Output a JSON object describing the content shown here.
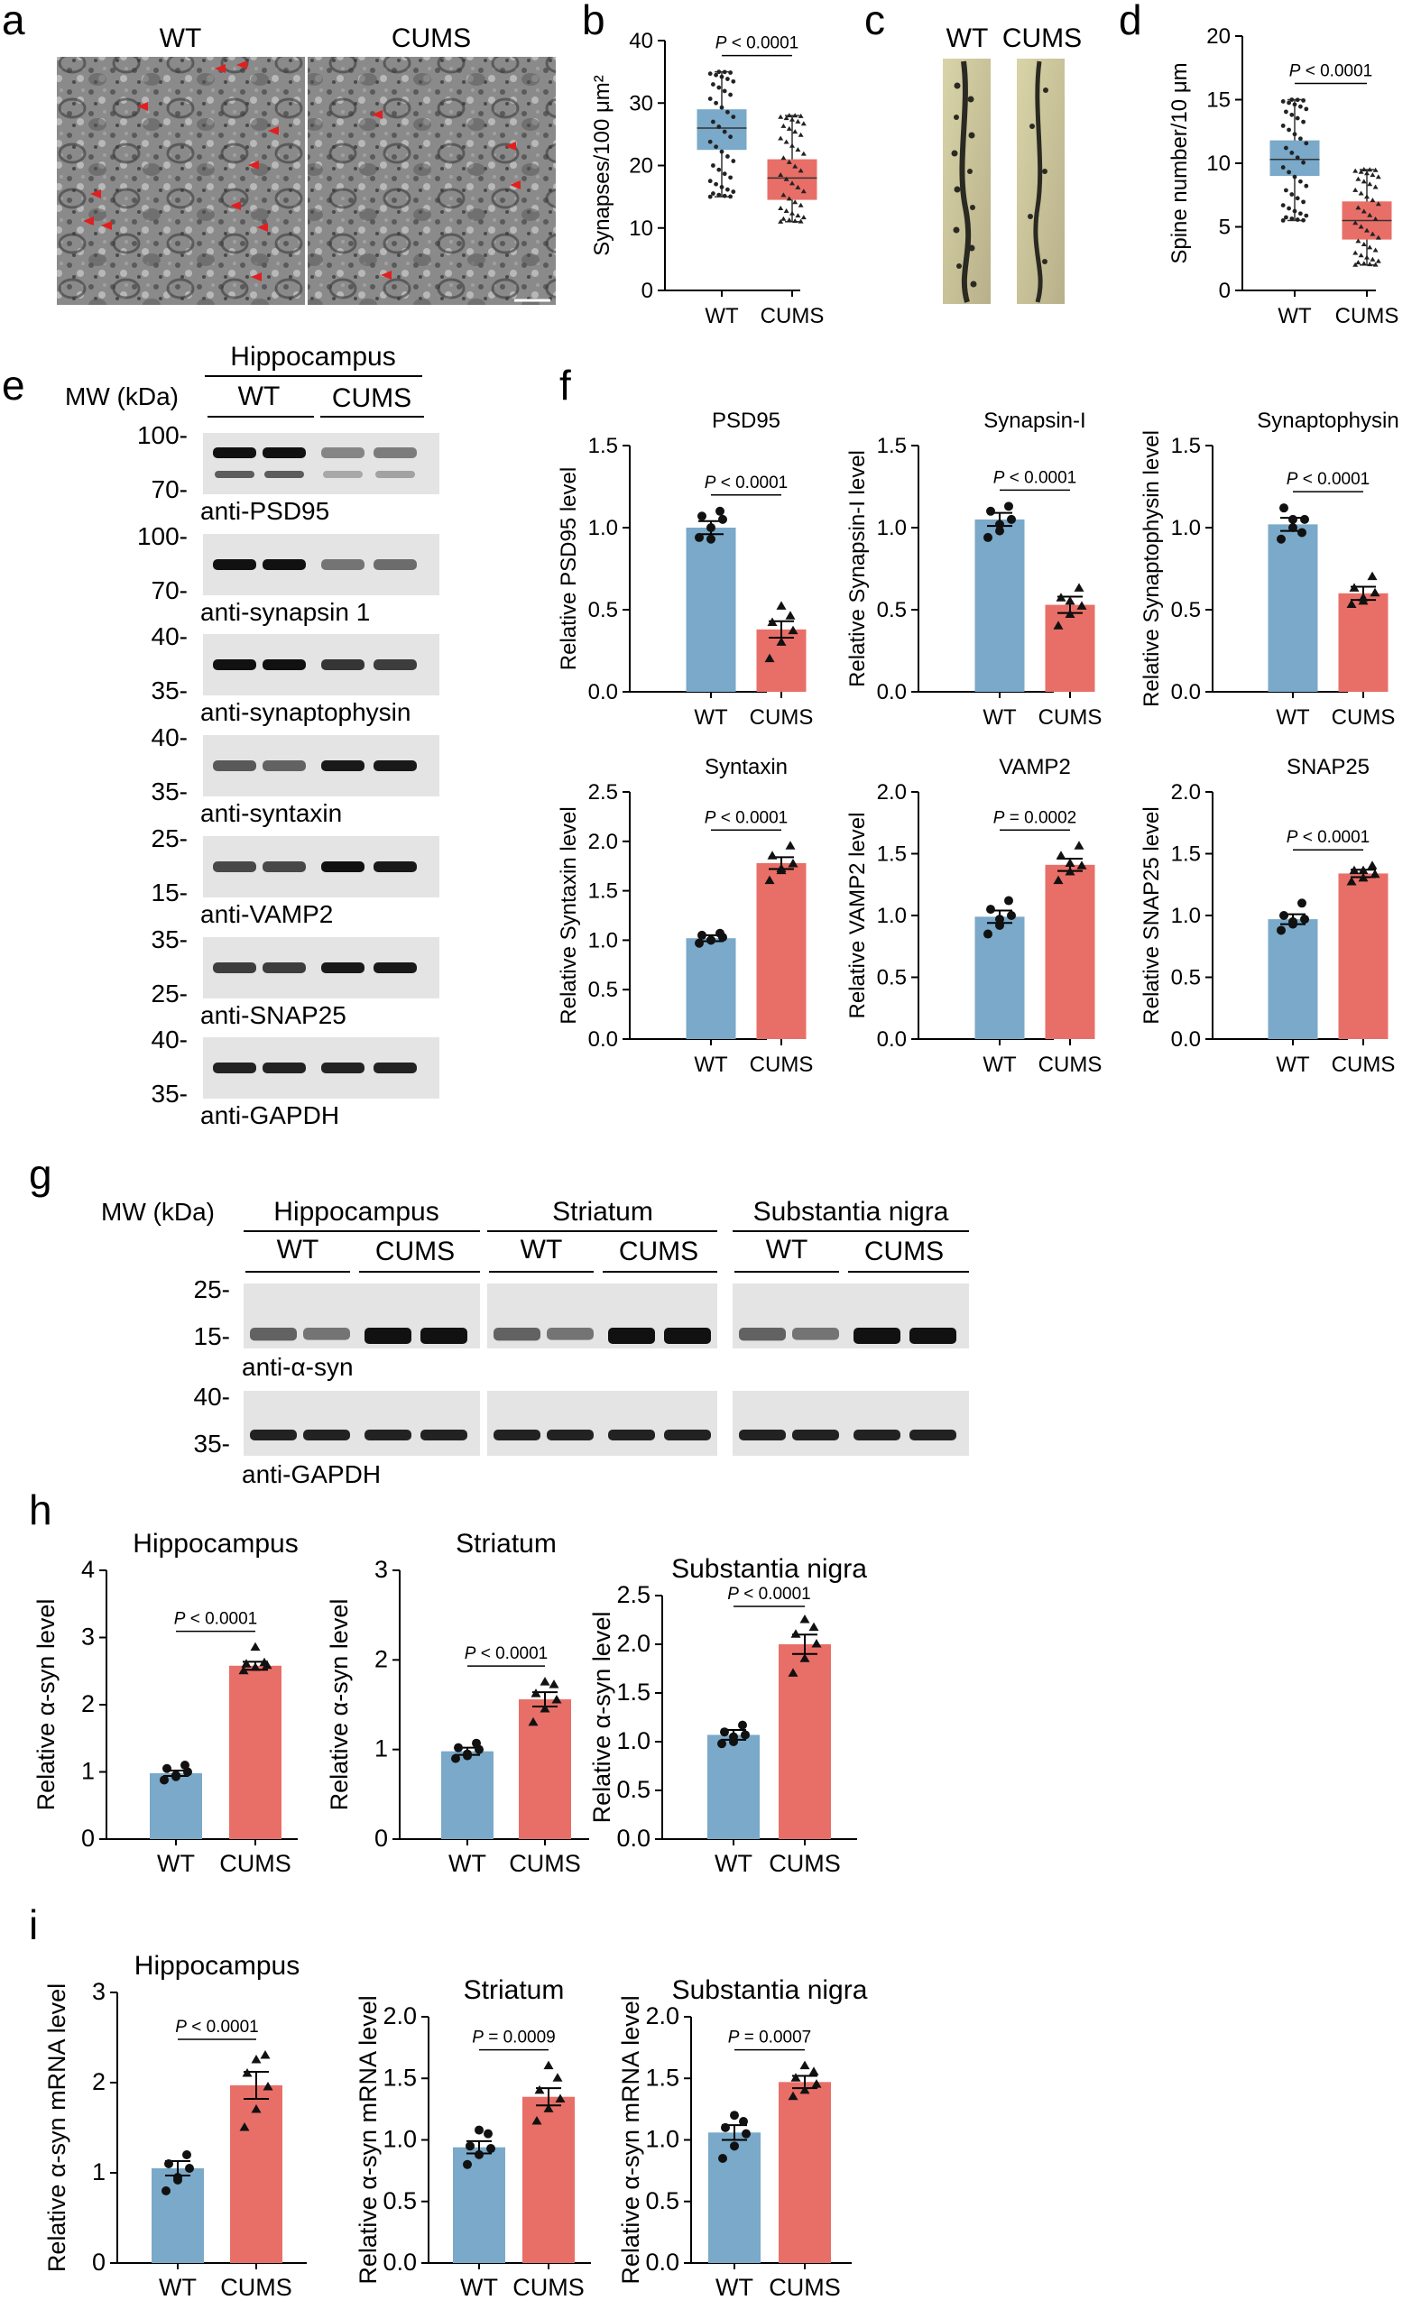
{
  "figure": {
    "panel_letters": [
      "a",
      "b",
      "c",
      "d",
      "e",
      "f",
      "g",
      "h",
      "i"
    ],
    "a": {
      "label_wt": "WT",
      "label_cums": "CUMS"
    },
    "c": {
      "label_wt": "WT",
      "label_cums": "CUMS"
    },
    "e": {
      "region": "Hippocampus",
      "mw_label": "MW (kDa)",
      "group_wt": "WT",
      "group_cums": "CUMS",
      "blots": [
        {
          "name": "anti-PSD95",
          "markers": [
            "100-",
            "70-"
          ],
          "intensities": [
            1.0,
            1.0,
            0.35,
            0.4
          ],
          "double": true
        },
        {
          "name": "anti-synapsin 1",
          "markers": [
            "100-",
            "70-"
          ],
          "intensities": [
            1.0,
            1.0,
            0.45,
            0.5
          ],
          "double": false
        },
        {
          "name": "anti-synaptophysin",
          "markers": [
            "40-",
            "35-"
          ],
          "intensities": [
            1.0,
            1.0,
            0.8,
            0.75
          ],
          "double": false
        },
        {
          "name": "anti-syntaxin",
          "markers": [
            "40-",
            "35-"
          ],
          "intensities": [
            0.6,
            0.55,
            0.95,
            0.95
          ],
          "double": false
        },
        {
          "name": "anti-VAMP2",
          "markers": [
            "25-",
            "15-"
          ],
          "intensities": [
            0.7,
            0.7,
            1.0,
            0.95
          ],
          "double": false
        },
        {
          "name": "anti-SNAP25",
          "markers": [
            "35-",
            "25-"
          ],
          "intensities": [
            0.75,
            0.75,
            0.95,
            0.95
          ],
          "double": false
        },
        {
          "name": "anti-GAPDH",
          "markers": [
            "40-",
            "35-"
          ],
          "intensities": [
            0.9,
            0.9,
            0.9,
            0.9
          ],
          "double": false
        }
      ]
    },
    "g": {
      "mw_label": "MW (kDa)",
      "regions": [
        "Hippocampus",
        "Striatum",
        "Substantia nigra"
      ],
      "group_wt": "WT",
      "group_cums": "CUMS",
      "blots": [
        {
          "name": "anti-α-syn",
          "markers": [
            "25-",
            "15-"
          ],
          "intensities": [
            0.55,
            0.45,
            1.0,
            1.0
          ]
        },
        {
          "name": "anti-GAPDH",
          "markers": [
            "40-",
            "35-"
          ],
          "intensities": [
            0.9,
            0.9,
            0.9,
            0.9
          ]
        }
      ]
    }
  },
  "chart_data": [
    {
      "panel": "b",
      "type": "box",
      "title": "",
      "ylabel": "Synapses/100 μm²",
      "ylim": [
        0,
        40
      ],
      "yticks": [
        0,
        10,
        20,
        30,
        40
      ],
      "categories": [
        "WT",
        "CUMS"
      ],
      "p_text": "P < 0.0001",
      "series": [
        {
          "name": "WT",
          "min": 15,
          "q1": 22.5,
          "median": 26,
          "q3": 29,
          "max": 35,
          "color": "#5b9bc4"
        },
        {
          "name": "CUMS",
          "min": 11,
          "q1": 14.5,
          "median": 18,
          "q3": 21,
          "max": 28,
          "color": "#e2665f"
        }
      ]
    },
    {
      "panel": "d",
      "type": "box",
      "title": "",
      "ylabel": "Spine number/10 μm",
      "ylim": [
        0,
        20
      ],
      "yticks": [
        0,
        5,
        10,
        15,
        20
      ],
      "categories": [
        "WT",
        "CUMS"
      ],
      "p_text": "P < 0.0001",
      "series": [
        {
          "name": "WT",
          "min": 5.5,
          "q1": 9,
          "median": 10.3,
          "q3": 11.8,
          "max": 15,
          "color": "#5b9bc4"
        },
        {
          "name": "CUMS",
          "min": 2,
          "q1": 4,
          "median": 5.5,
          "q3": 7,
          "max": 9.5,
          "color": "#e2665f"
        }
      ]
    },
    {
      "panel": "f1",
      "type": "bar",
      "title": "PSD95",
      "ylabel": "Relative PSD95 level",
      "ylim": [
        0,
        1.5
      ],
      "yticks": [
        "0.0",
        "0.5",
        "1.0",
        "1.5"
      ],
      "categories": [
        "WT",
        "CUMS"
      ],
      "values": [
        1.0,
        0.38
      ],
      "errors": [
        0.04,
        0.05
      ],
      "p_text": "P < 0.0001",
      "points": [
        [
          0.94,
          1.0,
          1.05,
          1.07,
          1.1,
          0.93
        ],
        [
          0.2,
          0.3,
          0.37,
          0.42,
          0.46,
          0.52
        ]
      ]
    },
    {
      "panel": "f2",
      "type": "bar",
      "title": "Synapsin-I",
      "ylabel": "Relative Synapsin-I level",
      "ylim": [
        0,
        1.5
      ],
      "yticks": [
        "0.0",
        "0.5",
        "1.0",
        "1.5"
      ],
      "categories": [
        "WT",
        "CUMS"
      ],
      "values": [
        1.05,
        0.53
      ],
      "errors": [
        0.04,
        0.05
      ],
      "p_text": "P < 0.0001",
      "points": [
        [
          0.94,
          1.02,
          1.05,
          1.1,
          1.13,
          0.98
        ],
        [
          0.4,
          0.47,
          0.52,
          0.57,
          0.63,
          0.55
        ]
      ]
    },
    {
      "panel": "f3",
      "type": "bar",
      "title": "Synaptophysin",
      "ylabel": "Relative Synaptophysin level",
      "ylim": [
        0,
        1.5
      ],
      "yticks": [
        "0.0",
        "0.5",
        "1.0",
        "1.5"
      ],
      "categories": [
        "WT",
        "CUMS"
      ],
      "values": [
        1.02,
        0.6
      ],
      "errors": [
        0.04,
        0.04
      ],
      "p_text": "P < 0.0001",
      "points": [
        [
          0.93,
          1.0,
          1.05,
          1.12,
          0.97,
          1.05
        ],
        [
          0.53,
          0.57,
          0.6,
          0.63,
          0.7,
          0.55
        ]
      ]
    },
    {
      "panel": "f4",
      "type": "bar",
      "title": "Syntaxin",
      "ylabel": "Relative Syntaxin level",
      "ylim": [
        0,
        2.5
      ],
      "yticks": [
        "0.0",
        "0.5",
        "1.0",
        "1.5",
        "2.0",
        "2.5"
      ],
      "categories": [
        "WT",
        "CUMS"
      ],
      "values": [
        1.02,
        1.78
      ],
      "errors": [
        0.03,
        0.06
      ],
      "p_text": "P < 0.0001",
      "points": [
        [
          0.97,
          1.0,
          1.03,
          1.05,
          1.07,
          1.0
        ],
        [
          1.6,
          1.7,
          1.77,
          1.85,
          1.95,
          1.72
        ]
      ]
    },
    {
      "panel": "f5",
      "type": "bar",
      "title": "VAMP2",
      "ylabel": "Relative VAMP2 level",
      "ylim": [
        0,
        2.0
      ],
      "yticks": [
        "0.0",
        "0.5",
        "1.0",
        "1.5",
        "2.0"
      ],
      "categories": [
        "WT",
        "CUMS"
      ],
      "values": [
        0.99,
        1.41
      ],
      "errors": [
        0.05,
        0.05
      ],
      "p_text": "P = 0.0002",
      "points": [
        [
          0.85,
          0.92,
          1.0,
          1.05,
          1.12,
          0.97
        ],
        [
          1.28,
          1.35,
          1.4,
          1.48,
          1.56,
          1.42
        ]
      ]
    },
    {
      "panel": "f6",
      "type": "bar",
      "title": "SNAP25",
      "ylabel": "Relative SNAP25 level",
      "ylim": [
        0,
        2.0
      ],
      "yticks": [
        "0.0",
        "0.5",
        "1.0",
        "1.5",
        "2.0"
      ],
      "categories": [
        "WT",
        "CUMS"
      ],
      "values": [
        0.97,
        1.34
      ],
      "errors": [
        0.04,
        0.03
      ],
      "p_text": "P < 0.0001",
      "points": [
        [
          0.88,
          0.93,
          0.97,
          1.0,
          1.1,
          0.95
        ],
        [
          1.27,
          1.3,
          1.33,
          1.36,
          1.4,
          1.36
        ]
      ]
    },
    {
      "panel": "h1",
      "type": "bar",
      "title": "Hippocampus",
      "ylabel": "Relative α-syn level",
      "ylim": [
        0,
        4
      ],
      "yticks": [
        "0",
        "1",
        "2",
        "3",
        "4"
      ],
      "categories": [
        "WT",
        "CUMS"
      ],
      "values": [
        0.98,
        2.58
      ],
      "errors": [
        0.04,
        0.06
      ],
      "p_text": "P < 0.0001",
      "points": [
        [
          0.88,
          0.95,
          1.0,
          1.05,
          1.1,
          0.93
        ],
        [
          2.5,
          2.55,
          2.58,
          2.6,
          2.62,
          2.85
        ]
      ]
    },
    {
      "panel": "h2",
      "type": "bar",
      "title": "Striatum",
      "ylabel": "Relative α-syn level",
      "ylim": [
        0,
        3
      ],
      "yticks": [
        "0",
        "1",
        "2",
        "3"
      ],
      "categories": [
        "WT",
        "CUMS"
      ],
      "values": [
        0.98,
        1.56
      ],
      "errors": [
        0.04,
        0.08
      ],
      "p_text": "P < 0.0001",
      "points": [
        [
          0.9,
          0.95,
          1.0,
          1.02,
          1.07,
          0.93
        ],
        [
          1.3,
          1.45,
          1.55,
          1.62,
          1.72,
          1.75
        ]
      ]
    },
    {
      "panel": "h3",
      "type": "bar",
      "title": "Substantia nigra",
      "ylabel": "Relative α-syn level",
      "ylim": [
        0,
        2.5
      ],
      "yticks": [
        "0.0",
        "0.5",
        "1.0",
        "1.5",
        "2.0",
        "2.5"
      ],
      "categories": [
        "WT",
        "CUMS"
      ],
      "values": [
        1.07,
        2.0
      ],
      "errors": [
        0.05,
        0.1
      ],
      "p_text": "P < 0.0001",
      "points": [
        [
          0.98,
          1.0,
          1.07,
          1.1,
          1.17,
          1.05
        ],
        [
          1.7,
          1.85,
          2.0,
          2.1,
          2.17,
          2.25
        ]
      ]
    },
    {
      "panel": "i1",
      "type": "bar",
      "title": "Hippocampus",
      "ylabel": "Relative α-syn mRNA level",
      "ylim": [
        0,
        3
      ],
      "yticks": [
        "0",
        "1",
        "2",
        "3"
      ],
      "categories": [
        "WT",
        "CUMS"
      ],
      "values": [
        1.05,
        1.97
      ],
      "errors": [
        0.08,
        0.15
      ],
      "p_text": "P < 0.0001",
      "points": [
        [
          0.8,
          0.95,
          1.05,
          1.1,
          1.2,
          0.92
        ],
        [
          1.5,
          1.7,
          1.95,
          2.1,
          2.3,
          2.25
        ]
      ]
    },
    {
      "panel": "i2",
      "type": "bar",
      "title": "Striatum",
      "ylabel": "Relative α-syn mRNA level",
      "ylim": [
        0,
        2.0
      ],
      "yticks": [
        "0.0",
        "0.5",
        "1.0",
        "1.5",
        "2.0"
      ],
      "categories": [
        "WT",
        "CUMS"
      ],
      "values": [
        0.94,
        1.35
      ],
      "errors": [
        0.05,
        0.07
      ],
      "p_text": "P = 0.0009",
      "points": [
        [
          0.8,
          0.88,
          0.93,
          0.95,
          1.05,
          1.08
        ],
        [
          1.15,
          1.25,
          1.33,
          1.4,
          1.5,
          1.6
        ]
      ]
    },
    {
      "panel": "i3",
      "type": "bar",
      "title": "Substantia nigra",
      "ylabel": "Relative α-syn mRNA level",
      "ylim": [
        0,
        2.0
      ],
      "yticks": [
        "0.0",
        "0.5",
        "1.0",
        "1.5",
        "2.0"
      ],
      "categories": [
        "WT",
        "CUMS"
      ],
      "values": [
        1.06,
        1.47
      ],
      "errors": [
        0.06,
        0.05
      ],
      "p_text": "P = 0.0007",
      "points": [
        [
          0.85,
          0.95,
          1.05,
          1.1,
          1.15,
          1.2
        ],
        [
          1.35,
          1.4,
          1.45,
          1.5,
          1.55,
          1.6
        ]
      ]
    }
  ]
}
